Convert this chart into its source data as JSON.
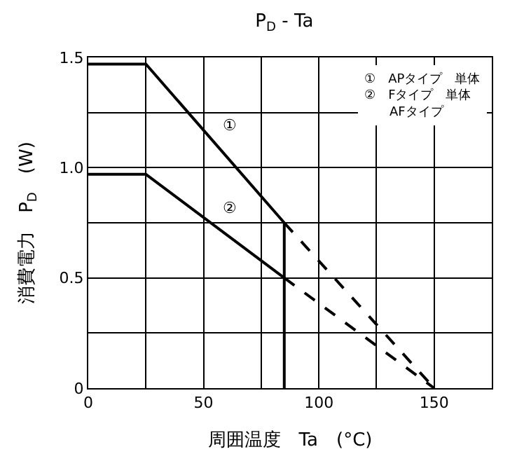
{
  "chart_data": {
    "type": "line",
    "title": "P$_{D}$ - Ta",
    "xlabel": "周囲温度　Ta　(°C)",
    "ylabel": "消費電力　P$_{D}$　(W)",
    "series": [
      {
        "name": "①",
        "color": "#000000",
        "x": [
          0,
          25,
          85
        ],
        "values": [
          1.47,
          1.47,
          0.75
        ],
        "line_style": "solid"
      },
      {
        "color": "#000000",
        "x": [
          85,
          150
        ],
        "values": [
          0.75,
          0
        ],
        "line_style": "dashed"
      },
      {
        "color": "#000000",
        "x": [
          85,
          85
        ],
        "values": [
          0.75,
          0
        ],
        "line_style": "solid"
      },
      {
        "name": "②",
        "color": "#000000",
        "x": [
          0,
          25,
          85
        ],
        "values": [
          0.97,
          0.97,
          0.5
        ],
        "line_style": "solid"
      },
      {
        "color": "#000000",
        "x": [
          85,
          150
        ],
        "values": [
          0.5,
          0
        ],
        "line_style": "dashed"
      }
    ],
    "xlim": [
      0,
      175
    ],
    "ylim": [
      0,
      1.5
    ],
    "xticks": [
      0,
      {
        "value": 25,
        "label": null
      },
      50,
      {
        "value": 75,
        "label": null
      },
      100,
      {
        "value": 125,
        "label": null
      },
      150,
      {
        "value": 175,
        "label": null
      }
    ],
    "yticks": [
      0,
      {
        "value": 0.25,
        "label": null
      },
      0.5,
      {
        "value": 0.75,
        "label": null
      },
      {
        "value": 1.0,
        "label": "1.0"
      },
      {
        "value": 1.25,
        "label": null
      },
      1.5
    ],
    "grid": true,
    "marker": "none",
    "annotations": [
      "①　APタイプ　単体\n②　Fタイプ　単体\n　　AFタイプ"
    ]
  }
}
